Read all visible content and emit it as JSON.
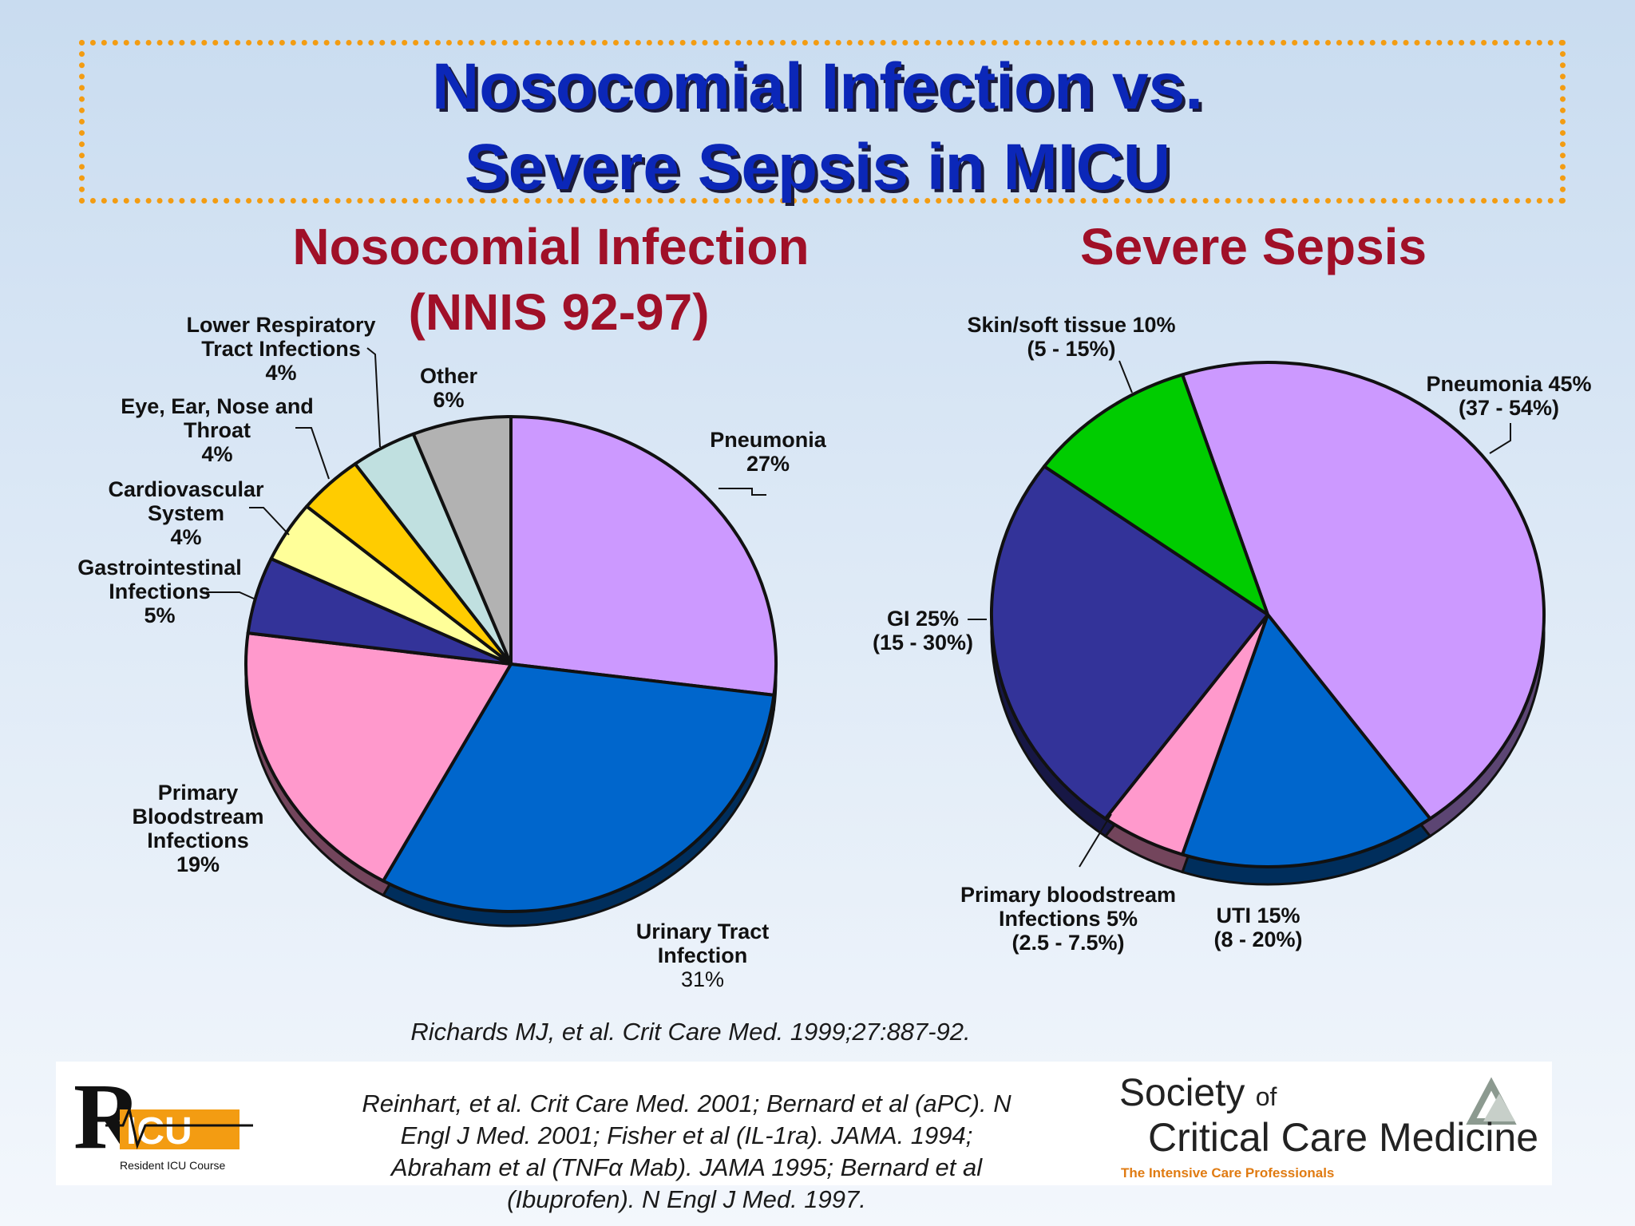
{
  "title": {
    "line1": "Nosocomial Infection vs.",
    "line2": "Severe Sepsis in MICU"
  },
  "left_chart_title": {
    "line1": "Nosocomial Infection",
    "line2": "(NNIS 92-97)"
  },
  "right_chart_title": "Severe Sepsis",
  "colors": {
    "title_blue": "#0b27b8",
    "subtitle_red": "#a01028",
    "border_orange": "#f39c12",
    "lavender": "#cc99ff",
    "blue": "#0066cc",
    "pink": "#ff99cc",
    "navy": "#333399",
    "light_yellow": "#ffff99",
    "gold": "#ffcc00",
    "light_cyan": "#c0e0e0",
    "gray": "#b2b2b2",
    "green": "#00cc00"
  },
  "chart_data": [
    {
      "type": "pie",
      "title": "Nosocomial Infection (NNIS 92-97)",
      "slices": [
        {
          "label_lines": [
            "Pneumonia",
            "27%"
          ],
          "value": 27,
          "color": "#cc99ff"
        },
        {
          "label_lines": [
            "Urinary Tract",
            "Infection",
            "31%"
          ],
          "value": 31,
          "color": "#0066cc"
        },
        {
          "label_lines": [
            "Primary",
            "Bloodstream",
            "Infections",
            "19%"
          ],
          "value": 19,
          "color": "#ff99cc"
        },
        {
          "label_lines": [
            "Gastrointestinal",
            "Infections",
            "5%"
          ],
          "value": 5,
          "color": "#333399"
        },
        {
          "label_lines": [
            "Cardiovascular",
            "System",
            "4%"
          ],
          "value": 4,
          "color": "#ffff99"
        },
        {
          "label_lines": [
            "Eye, Ear, Nose and",
            "Throat",
            "4%"
          ],
          "value": 4,
          "color": "#ffcc00"
        },
        {
          "label_lines": [
            "Lower Respiratory",
            "Tract Infections",
            "4%"
          ],
          "value": 4,
          "color": "#c0e0e0"
        },
        {
          "label_lines": [
            "Other",
            "6%"
          ],
          "value": 6,
          "color": "#b2b2b2"
        }
      ]
    },
    {
      "type": "pie",
      "title": "Severe Sepsis",
      "slices": [
        {
          "label_lines": [
            "Pneumonia 45%",
            "(37 - 54%)"
          ],
          "value": 45,
          "color": "#cc99ff"
        },
        {
          "label_lines": [
            "UTI  15%",
            "(8 - 20%)"
          ],
          "value": 15,
          "color": "#0066cc"
        },
        {
          "label_lines": [
            "Primary bloodstream",
            "Infections 5%",
            "(2.5 - 7.5%)"
          ],
          "value": 5,
          "color": "#ff99cc"
        },
        {
          "label_lines": [
            "GI 25%",
            "(15 - 30%)"
          ],
          "value": 25,
          "color": "#333399"
        },
        {
          "label_lines": [
            "Skin/soft tissue 10%",
            "(5 - 15%)"
          ],
          "value": 10,
          "color": "#00cc00"
        }
      ]
    }
  ],
  "citation1": "Richards MJ, et al. Crit Care Med. 1999;27:887-92.",
  "citation2_lines": [
    "Reinhart, et al. Crit Care Med. 2001; Bernard et al (aPC). N",
    "Engl J Med. 2001; Fisher et al (IL-1ra). JAMA. 1994;",
    "Abraham et al (TNFα Mab). JAMA 1995; Bernard et al",
    "(Ibuprofen). N Engl J Med. 1997."
  ],
  "logo_left": {
    "letter": "R",
    "icu": "ICU",
    "caption": "Resident ICU Course"
  },
  "logo_right": {
    "society": "Society",
    "of": "of",
    "name": "Critical Care Medicine",
    "tagline": "The Intensive Care Professionals"
  }
}
